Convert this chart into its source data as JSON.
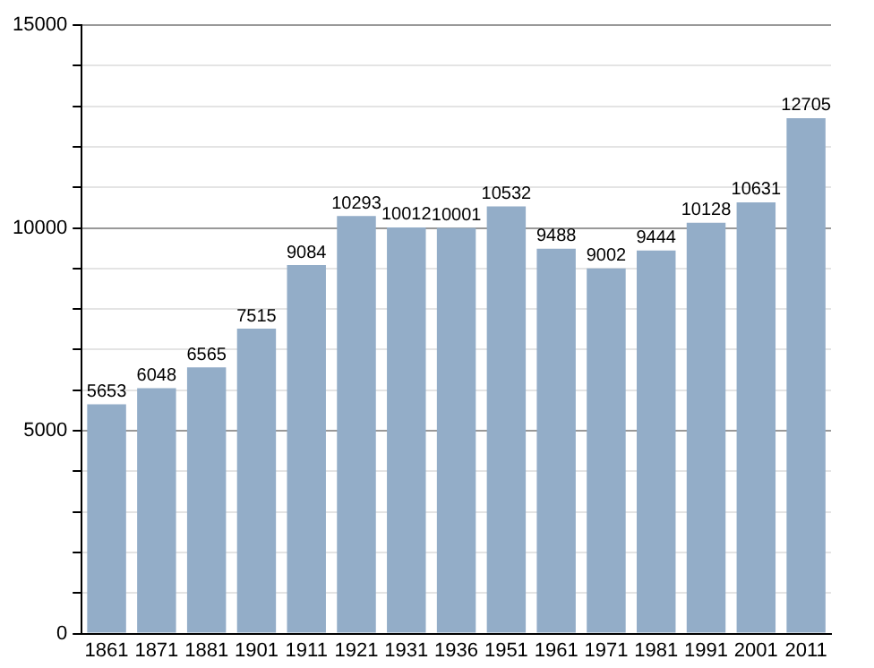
{
  "chart_data": {
    "type": "bar",
    "categories": [
      "1861",
      "1871",
      "1881",
      "1901",
      "1911",
      "1921",
      "1931",
      "1936",
      "1951",
      "1961",
      "1971",
      "1981",
      "1991",
      "2001",
      "2011"
    ],
    "values": [
      5653,
      6048,
      6565,
      7515,
      9084,
      10293,
      10012,
      10001,
      10532,
      9488,
      9002,
      9444,
      10128,
      10631,
      12705
    ],
    "color": "#93adc8",
    "ylim": [
      0,
      15000
    ],
    "yticks": [
      0,
      {
        "value": 1000,
        "label": null
      },
      {
        "value": 2000,
        "label": null
      },
      {
        "value": 3000,
        "label": null
      },
      {
        "value": 4000,
        "label": null
      },
      5000,
      {
        "value": 6000,
        "label": null
      },
      {
        "value": 7000,
        "label": null
      },
      {
        "value": 8000,
        "label": null
      },
      {
        "value": 9000,
        "label": null
      },
      10000,
      {
        "value": 11000,
        "label": null
      },
      {
        "value": 12000,
        "label": null
      },
      {
        "value": 13000,
        "label": null
      },
      {
        "value": 14000,
        "label": null
      },
      15000
    ],
    "grid": "y",
    "data_labels": true
  }
}
